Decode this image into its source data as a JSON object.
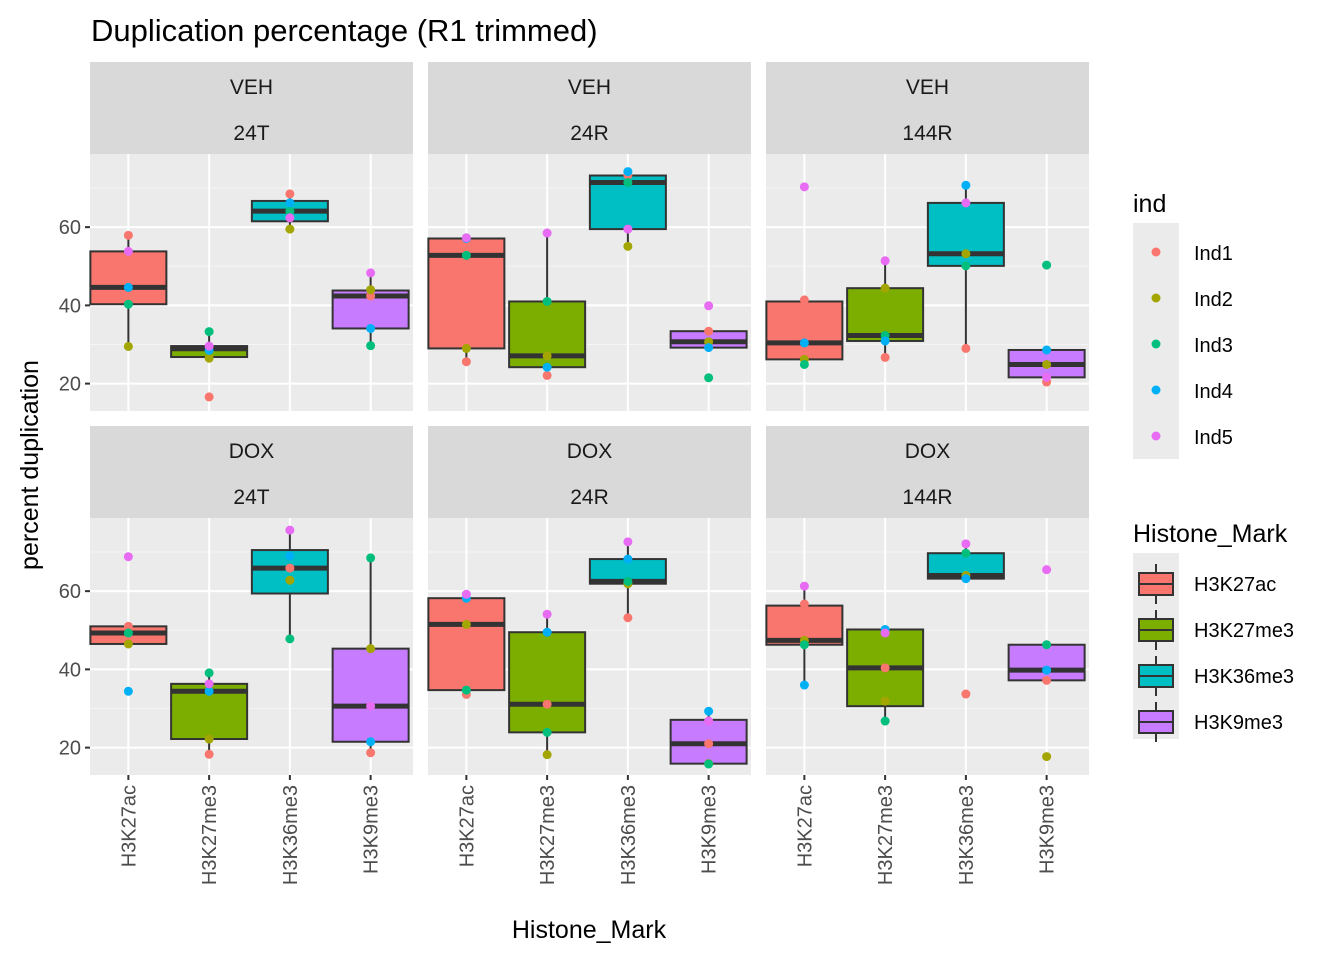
{
  "chart_data": {
    "type": "boxplot",
    "title": "Duplication percentage (R1 trimmed)",
    "xlabel": "Histone_Mark",
    "ylabel": "percent duplication",
    "ylim": [
      13,
      78.7
    ],
    "yticks": [
      20,
      40,
      60
    ],
    "grid": true,
    "categories": [
      "H3K27ac",
      "H3K27me3",
      "H3K36me3",
      "H3K9me3"
    ],
    "category_colors": {
      "H3K27ac": "#F8766D",
      "H3K27me3": "#7CAE00",
      "H3K36me3": "#00BFC4",
      "H3K9me3": "#C77CFF"
    },
    "individuals": [
      "Ind1",
      "Ind2",
      "Ind3",
      "Ind4",
      "Ind5"
    ],
    "individual_colors": {
      "Ind1": "#F8766D",
      "Ind2": "#A3A500",
      "Ind3": "#00BF7D",
      "Ind4": "#00B0F6",
      "Ind5": "#E76BF3"
    },
    "legend_position": "right",
    "legends": [
      {
        "title": "ind",
        "type": "point",
        "entries": [
          "Ind1",
          "Ind2",
          "Ind3",
          "Ind4",
          "Ind5"
        ]
      },
      {
        "title": "Histone_Mark",
        "type": "box",
        "entries": [
          "H3K27ac",
          "H3K27me3",
          "H3K36me3",
          "H3K9me3"
        ]
      }
    ],
    "panels": [
      {
        "row_label": "VEH",
        "col_label": "24T",
        "groups": [
          {
            "mark": "H3K27ac",
            "box": {
              "lower": 29.5,
              "q1": 40.3,
              "median": 44.6,
              "q3": 53.8,
              "upper": 57.9
            },
            "points": {
              "Ind1": 57.9,
              "Ind2": 29.5,
              "Ind3": 40.3,
              "Ind4": 44.6,
              "Ind5": 53.8
            }
          },
          {
            "mark": "H3K27me3",
            "box": {
              "lower": 26.8,
              "q1": 26.8,
              "median": 28.9,
              "q3": 29.6,
              "upper": 33.3
            },
            "points": {
              "Ind1": 16.6,
              "Ind2": 26.5,
              "Ind3": 33.3,
              "Ind4": 28.5,
              "Ind5": 29.6
            }
          },
          {
            "mark": "H3K36me3",
            "box": {
              "lower": 59.5,
              "q1": 61.5,
              "median": 64.1,
              "q3": 66.7,
              "upper": 68.5
            },
            "points": {
              "Ind1": 68.5,
              "Ind2": 59.5,
              "Ind3": 64.1,
              "Ind4": 66.2,
              "Ind5": 62.4
            }
          },
          {
            "mark": "H3K9me3",
            "box": {
              "lower": 29.7,
              "q1": 34.1,
              "median": 42.4,
              "q3": 43.8,
              "upper": 48.3
            },
            "points": {
              "Ind1": 42.4,
              "Ind2": 44.0,
              "Ind3": 29.7,
              "Ind4": 34.1,
              "Ind5": 48.3
            }
          }
        ]
      },
      {
        "row_label": "VEH",
        "col_label": "24R",
        "groups": [
          {
            "mark": "H3K27ac",
            "box": {
              "lower": 25.6,
              "q1": 29.0,
              "median": 52.8,
              "q3": 57.1,
              "upper": 57.3
            },
            "points": {
              "Ind1": 25.6,
              "Ind2": 29.0,
              "Ind3": 52.8,
              "Ind4": 57.1,
              "Ind5": 57.3
            }
          },
          {
            "mark": "H3K27me3",
            "box": {
              "lower": 22.1,
              "q1": 24.2,
              "median": 27.1,
              "q3": 41.0,
              "upper": 58.5
            },
            "points": {
              "Ind1": 22.1,
              "Ind2": 27.1,
              "Ind3": 41.0,
              "Ind4": 24.2,
              "Ind5": 58.5
            }
          },
          {
            "mark": "H3K36me3",
            "box": {
              "lower": 55.1,
              "q1": 59.5,
              "median": 71.4,
              "q3": 73.2,
              "upper": 74.2
            },
            "points": {
              "Ind1": 73.3,
              "Ind2": 55.1,
              "Ind3": 71.4,
              "Ind4": 74.2,
              "Ind5": 59.5
            }
          },
          {
            "mark": "H3K9me3",
            "box": {
              "lower": 29.2,
              "q1": 29.2,
              "median": 30.7,
              "q3": 33.4,
              "upper": 33.4
            },
            "points": {
              "Ind1": 33.4,
              "Ind2": 30.7,
              "Ind3": 21.5,
              "Ind4": 29.2,
              "Ind5": 39.9
            }
          }
        ]
      },
      {
        "row_label": "VEH",
        "col_label": "144R",
        "groups": [
          {
            "mark": "H3K27ac",
            "box": {
              "lower": 24.9,
              "q1": 26.2,
              "median": 30.4,
              "q3": 41.0,
              "upper": 41.4
            },
            "points": {
              "Ind1": 41.4,
              "Ind2": 26.2,
              "Ind3": 24.9,
              "Ind4": 30.4,
              "Ind5": 70.3
            }
          },
          {
            "mark": "H3K27me3",
            "box": {
              "lower": 26.7,
              "q1": 30.9,
              "median": 32.3,
              "q3": 44.4,
              "upper": 51.4
            },
            "points": {
              "Ind1": 26.7,
              "Ind2": 44.4,
              "Ind3": 32.3,
              "Ind4": 30.9,
              "Ind5": 51.4
            }
          },
          {
            "mark": "H3K36me3",
            "box": {
              "lower": 29.0,
              "q1": 50.1,
              "median": 53.2,
              "q3": 66.2,
              "upper": 70.7
            },
            "points": {
              "Ind1": 29.0,
              "Ind2": 53.2,
              "Ind3": 50.1,
              "Ind4": 70.7,
              "Ind5": 66.2
            }
          },
          {
            "mark": "H3K9me3",
            "box": {
              "lower": 20.4,
              "q1": 21.6,
              "median": 24.9,
              "q3": 28.6,
              "upper": 28.6
            },
            "points": {
              "Ind1": 20.4,
              "Ind2": 24.9,
              "Ind3": 50.3,
              "Ind4": 28.6,
              "Ind5": 21.6
            }
          }
        ]
      },
      {
        "row_label": "DOX",
        "col_label": "24T",
        "groups": [
          {
            "mark": "H3K27ac",
            "box": {
              "lower": 46.5,
              "q1": 46.5,
              "median": 49.3,
              "q3": 51.0,
              "upper": 51.0
            },
            "points": {
              "Ind1": 51.0,
              "Ind2": 46.5,
              "Ind3": 49.3,
              "Ind4": 34.4,
              "Ind5": 68.8
            }
          },
          {
            "mark": "H3K27me3",
            "box": {
              "lower": 18.3,
              "q1": 22.2,
              "median": 34.4,
              "q3": 36.3,
              "upper": 39.1
            },
            "points": {
              "Ind1": 18.3,
              "Ind2": 22.2,
              "Ind3": 39.1,
              "Ind4": 34.4,
              "Ind5": 36.3
            }
          },
          {
            "mark": "H3K36me3",
            "box": {
              "lower": 47.8,
              "q1": 59.4,
              "median": 65.9,
              "q3": 70.5,
              "upper": 75.6
            },
            "points": {
              "Ind1": 65.9,
              "Ind2": 62.8,
              "Ind3": 47.8,
              "Ind4": 69.0,
              "Ind5": 75.6
            }
          },
          {
            "mark": "H3K9me3",
            "box": {
              "lower": 18.7,
              "q1": 21.5,
              "median": 30.6,
              "q3": 45.3,
              "upper": 68.5
            },
            "points": {
              "Ind1": 18.7,
              "Ind2": 45.3,
              "Ind3": 68.5,
              "Ind4": 21.5,
              "Ind5": 30.6
            }
          }
        ]
      },
      {
        "row_label": "DOX",
        "col_label": "24R",
        "groups": [
          {
            "mark": "H3K27ac",
            "box": {
              "lower": 33.6,
              "q1": 34.7,
              "median": 51.5,
              "q3": 58.2,
              "upper": 59.2
            },
            "points": {
              "Ind1": 33.6,
              "Ind2": 51.5,
              "Ind3": 34.7,
              "Ind4": 58.2,
              "Ind5": 59.2
            }
          },
          {
            "mark": "H3K27me3",
            "box": {
              "lower": 18.2,
              "q1": 23.9,
              "median": 31.1,
              "q3": 49.5,
              "upper": 54.1
            },
            "points": {
              "Ind1": 31.1,
              "Ind2": 18.2,
              "Ind3": 23.9,
              "Ind4": 49.5,
              "Ind5": 54.1
            }
          },
          {
            "mark": "H3K36me3",
            "box": {
              "lower": 53.2,
              "q1": 61.9,
              "median": 62.5,
              "q3": 68.2,
              "upper": 72.6
            },
            "points": {
              "Ind1": 53.2,
              "Ind2": 61.9,
              "Ind3": 62.5,
              "Ind4": 68.2,
              "Ind5": 72.6
            }
          },
          {
            "mark": "H3K9me3",
            "box": {
              "lower": 15.8,
              "q1": 15.9,
              "median": 21.0,
              "q3": 27.1,
              "upper": 29.3
            },
            "points": {
              "Ind1": 21.0,
              "Ind2": 15.9,
              "Ind3": 15.8,
              "Ind4": 29.3,
              "Ind5": 26.8
            }
          }
        ]
      },
      {
        "row_label": "DOX",
        "col_label": "144R",
        "groups": [
          {
            "mark": "H3K27ac",
            "box": {
              "lower": 36.0,
              "q1": 46.3,
              "median": 47.4,
              "q3": 56.3,
              "upper": 61.3
            },
            "points": {
              "Ind1": 56.7,
              "Ind2": 47.4,
              "Ind3": 46.3,
              "Ind4": 36.0,
              "Ind5": 61.3
            }
          },
          {
            "mark": "H3K27me3",
            "box": {
              "lower": 26.8,
              "q1": 30.6,
              "median": 40.4,
              "q3": 50.2,
              "upper": 50.2
            },
            "points": {
              "Ind1": 40.4,
              "Ind2": 31.9,
              "Ind3": 26.8,
              "Ind4": 50.2,
              "Ind5": 49.3
            }
          },
          {
            "mark": "H3K36me3",
            "box": {
              "lower": 63.2,
              "q1": 63.2,
              "median": 64.0,
              "q3": 69.7,
              "upper": 72.1
            },
            "points": {
              "Ind1": 33.7,
              "Ind2": 64.0,
              "Ind3": 69.7,
              "Ind4": 63.2,
              "Ind5": 72.1
            }
          },
          {
            "mark": "H3K9me3",
            "box": {
              "lower": 37.2,
              "q1": 37.2,
              "median": 39.8,
              "q3": 46.3,
              "upper": 46.3
            },
            "points": {
              "Ind1": 37.2,
              "Ind2": 17.7,
              "Ind3": 46.3,
              "Ind4": 39.8,
              "Ind5": 65.5
            }
          }
        ]
      }
    ]
  }
}
